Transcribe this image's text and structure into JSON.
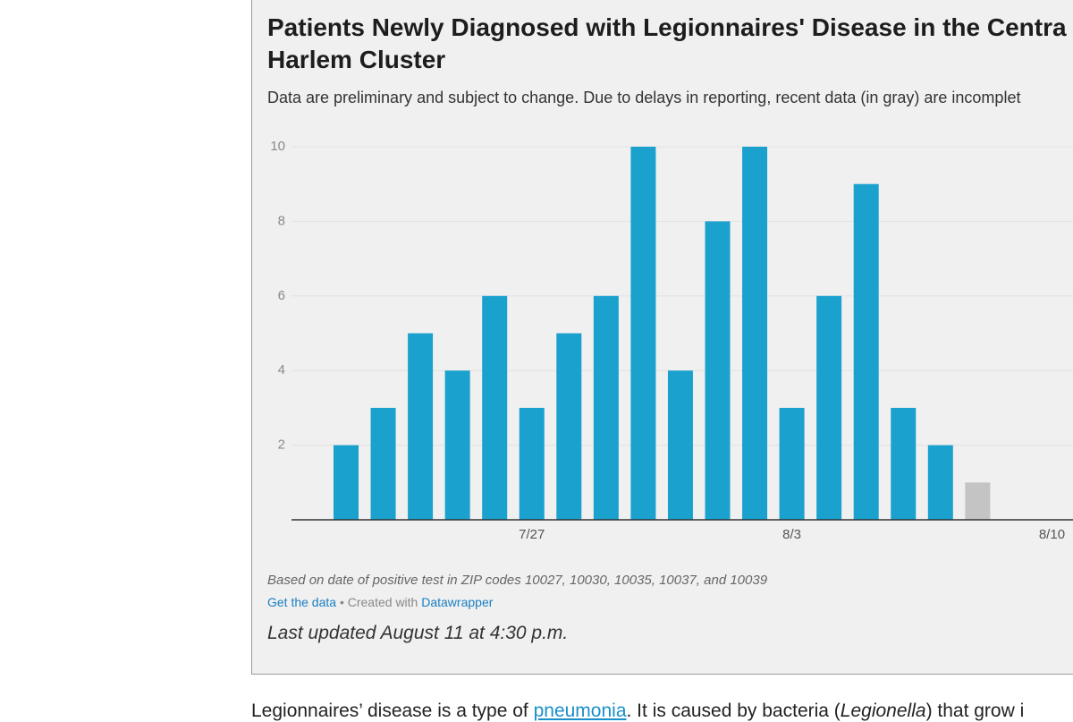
{
  "chart_data": {
    "type": "bar",
    "title": [
      "Patients Newly Diagnosed with Legionnaires' Disease in the Centra",
      "Harlem Cluster"
    ],
    "subtitle": "Data are preliminary and subject to change. Due to delays in reporting, recent data (in gray) are incomplet",
    "categories": [
      null,
      null,
      null,
      null,
      null,
      "7/27",
      null,
      null,
      null,
      null,
      null,
      null,
      "8/3",
      null,
      null,
      null,
      null,
      null,
      null,
      "8/10"
    ],
    "values": [
      2,
      3,
      5,
      4,
      6,
      3,
      5,
      6,
      10,
      4,
      8,
      10,
      3,
      6,
      9,
      3,
      2,
      1,
      null,
      null
    ],
    "colors": [
      "#1aa1ce",
      "#1aa1ce",
      "#1aa1ce",
      "#1aa1ce",
      "#1aa1ce",
      "#1aa1ce",
      "#1aa1ce",
      "#1aa1ce",
      "#1aa1ce",
      "#1aa1ce",
      "#1aa1ce",
      "#1aa1ce",
      "#1aa1ce",
      "#1aa1ce",
      "#1aa1ce",
      "#1aa1ce",
      "#1aa1ce",
      "#c4c4c4",
      null,
      null
    ],
    "ylim": [
      0,
      10
    ],
    "yticks": [
      2,
      4,
      6,
      8,
      10
    ],
    "grid": true,
    "note": "Based on date of positive test in ZIP codes 10027, 10030, 10035, 10037, and 10039"
  },
  "footer": {
    "get_data": "Get the data",
    "created_with": "• Created with",
    "tool": "Datawrapper",
    "updated": "Last updated August 11 at 4:30 p.m."
  },
  "body_text": {
    "parts": [
      "Legionnaires’ disease is a type of ",
      "pneumonia",
      ". It is caused by bacteria (",
      "Legionella",
      ") that grow i"
    ]
  }
}
